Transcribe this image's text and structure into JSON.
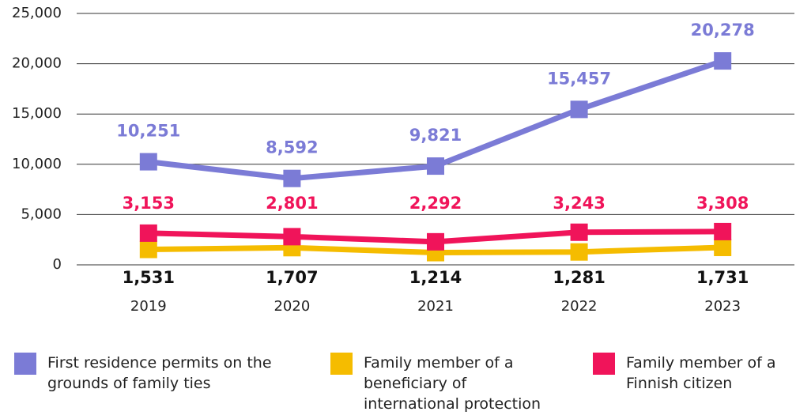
{
  "chart_data": {
    "type": "line",
    "categories": [
      "2019",
      "2020",
      "2021",
      "2022",
      "2023"
    ],
    "series": [
      {
        "name": "First residence permits on the grounds of family ties",
        "color": "#7b7bd6",
        "values": [
          10251,
          8592,
          9821,
          15457,
          20278
        ],
        "value_labels": [
          "10,251",
          "8,592",
          "9,821",
          "15,457",
          "20,278"
        ]
      },
      {
        "name": "Family member of a beneficiary of international protection",
        "color": "#f5bc00",
        "values": [
          1531,
          1707,
          1214,
          1281,
          1731
        ],
        "value_labels": [
          "1,531",
          "1,707",
          "1,214",
          "1,281",
          "1,731"
        ]
      },
      {
        "name": "Family member of a Finnish citizen",
        "color": "#f0145a",
        "values": [
          3153,
          2801,
          2292,
          3243,
          3308
        ],
        "value_labels": [
          "3,153",
          "2,801",
          "2,292",
          "3,243",
          "3,308"
        ]
      }
    ],
    "ylim": [
      0,
      25000
    ],
    "yticks": [
      0,
      {
        "value": 5000,
        "label": "5,000"
      },
      {
        "value": 10000,
        "label": "10,000"
      },
      {
        "value": 15000,
        "label": "15,000"
      },
      {
        "value": 20000,
        "label": "20,000"
      },
      {
        "value": 25000,
        "label": "25,000"
      }
    ],
    "grid": true,
    "legend": "bottom"
  }
}
